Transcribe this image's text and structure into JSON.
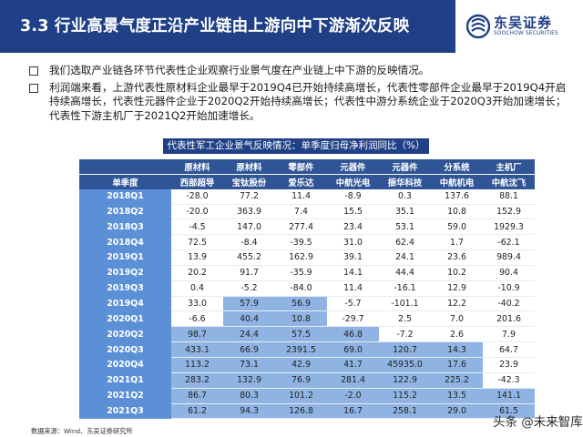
{
  "header": {
    "title": "3.3 行业高景气度正沿产业链由上游向中下游渐次反映"
  },
  "logo": {
    "brand": "东吴证券",
    "sub": "SOOCHOW SECURITIES"
  },
  "bullets": [
    "我们选取产业链各环节代表性企业观察行业景气度在产业链上中下游的反映情况。",
    "利润端来看，上游代表性原材料企业最早于2019Q4已开始持续高增长，代表性零部件企业最早于2019Q4开启持续高增长，代表性元器件企业于2020Q2开始持续高增长；代表性中游分系统企业于2020Q3开始加速增长；代表性下游主机厂于2021Q2开始加速增长。"
  ],
  "table": {
    "caption": "代表性军工企业景气反映情况：单季度归母净利润同比（%）",
    "categories": [
      "原材料",
      "原材料",
      "零部件",
      "元器件",
      "元器件",
      "分系统",
      "主机厂"
    ],
    "corner_label": "单季度",
    "companies": [
      "西部超导",
      "宝钛股份",
      "爱乐达",
      "中航光电",
      "振华科技",
      "中航机电",
      "中航沈飞"
    ],
    "rows": [
      {
        "label": "2018Q1",
        "values": [
          "-28.0",
          "77.2",
          "11.4",
          "-8.9",
          "0.3",
          "137.6",
          "88.1"
        ]
      },
      {
        "label": "2018Q2",
        "values": [
          "-20.0",
          "363.9",
          "7.4",
          "15.5",
          "35.1",
          "10.8",
          "152.9"
        ]
      },
      {
        "label": "2018Q3",
        "values": [
          "-4.5",
          "147.0",
          "277.4",
          "23.4",
          "53.1",
          "59.0",
          "1929.3"
        ]
      },
      {
        "label": "2018Q4",
        "values": [
          "72.5",
          "-8.4",
          "-39.5",
          "31.0",
          "62.4",
          "1.7",
          "-62.1"
        ]
      },
      {
        "label": "2019Q1",
        "values": [
          "13.9",
          "455.2",
          "162.9",
          "39.1",
          "24.1",
          "23.6",
          "989.4"
        ]
      },
      {
        "label": "2019Q2",
        "values": [
          "20.2",
          "91.7",
          "-35.9",
          "14.1",
          "44.4",
          "10.2",
          "90.4"
        ]
      },
      {
        "label": "2019Q3",
        "values": [
          "0.4",
          "-5.2",
          "-84.0",
          "11.4",
          "-16.1",
          "12.9",
          "-10.9"
        ]
      },
      {
        "label": "2019Q4",
        "values": [
          "33.0",
          "57.9",
          "56.9",
          "-5.7",
          "-101.1",
          "12.2",
          "-40.2"
        ]
      },
      {
        "label": "2020Q1",
        "values": [
          "-6.6",
          "40.4",
          "10.8",
          "-29.7",
          "2.5",
          "7.0",
          "201.6"
        ]
      },
      {
        "label": "2020Q2",
        "values": [
          "98.7",
          "24.4",
          "57.5",
          "46.8",
          "-7.2",
          "2.6",
          "7.9"
        ]
      },
      {
        "label": "2020Q3",
        "values": [
          "433.1",
          "66.9",
          "2391.5",
          "69.0",
          "120.7",
          "14.3",
          "64.7"
        ]
      },
      {
        "label": "2020Q4",
        "values": [
          "113.2",
          "73.1",
          "42.9",
          "41.7",
          "45935.0",
          "17.6",
          "23.9"
        ]
      },
      {
        "label": "2021Q1",
        "values": [
          "283.2",
          "132.9",
          "76.9",
          "281.4",
          "122.9",
          "225.2",
          "-42.3"
        ]
      },
      {
        "label": "2021Q2",
        "values": [
          "86.7",
          "80.3",
          "101.2",
          "-2.0",
          "115.2",
          "13.5",
          "141.1"
        ]
      },
      {
        "label": "2021Q3",
        "values": [
          "61.2",
          "94.3",
          "126.8",
          "16.7",
          "258.1",
          "29.0",
          "61.5"
        ]
      }
    ],
    "highlight_color": "#8fb4e3",
    "highlights": [
      [],
      [],
      [],
      [],
      [],
      [],
      [],
      [
        1,
        2
      ],
      [
        1,
        2
      ],
      [
        0,
        1,
        2,
        3
      ],
      [
        0,
        1,
        2,
        3,
        4,
        5
      ],
      [
        0,
        1,
        2,
        3,
        4,
        5
      ],
      [
        0,
        1,
        2,
        3,
        4,
        5
      ],
      [
        0,
        1,
        2,
        3,
        4,
        5,
        6
      ],
      [
        0,
        1,
        2,
        3,
        4,
        5,
        6
      ]
    ]
  },
  "source": "数据来源：Wind、东吴证券研究所",
  "watermark": "头条 @未来智库",
  "colors": {
    "header": "#1f3f86",
    "table_header": "#2f5597",
    "row_label": "#5b8fd6"
  }
}
